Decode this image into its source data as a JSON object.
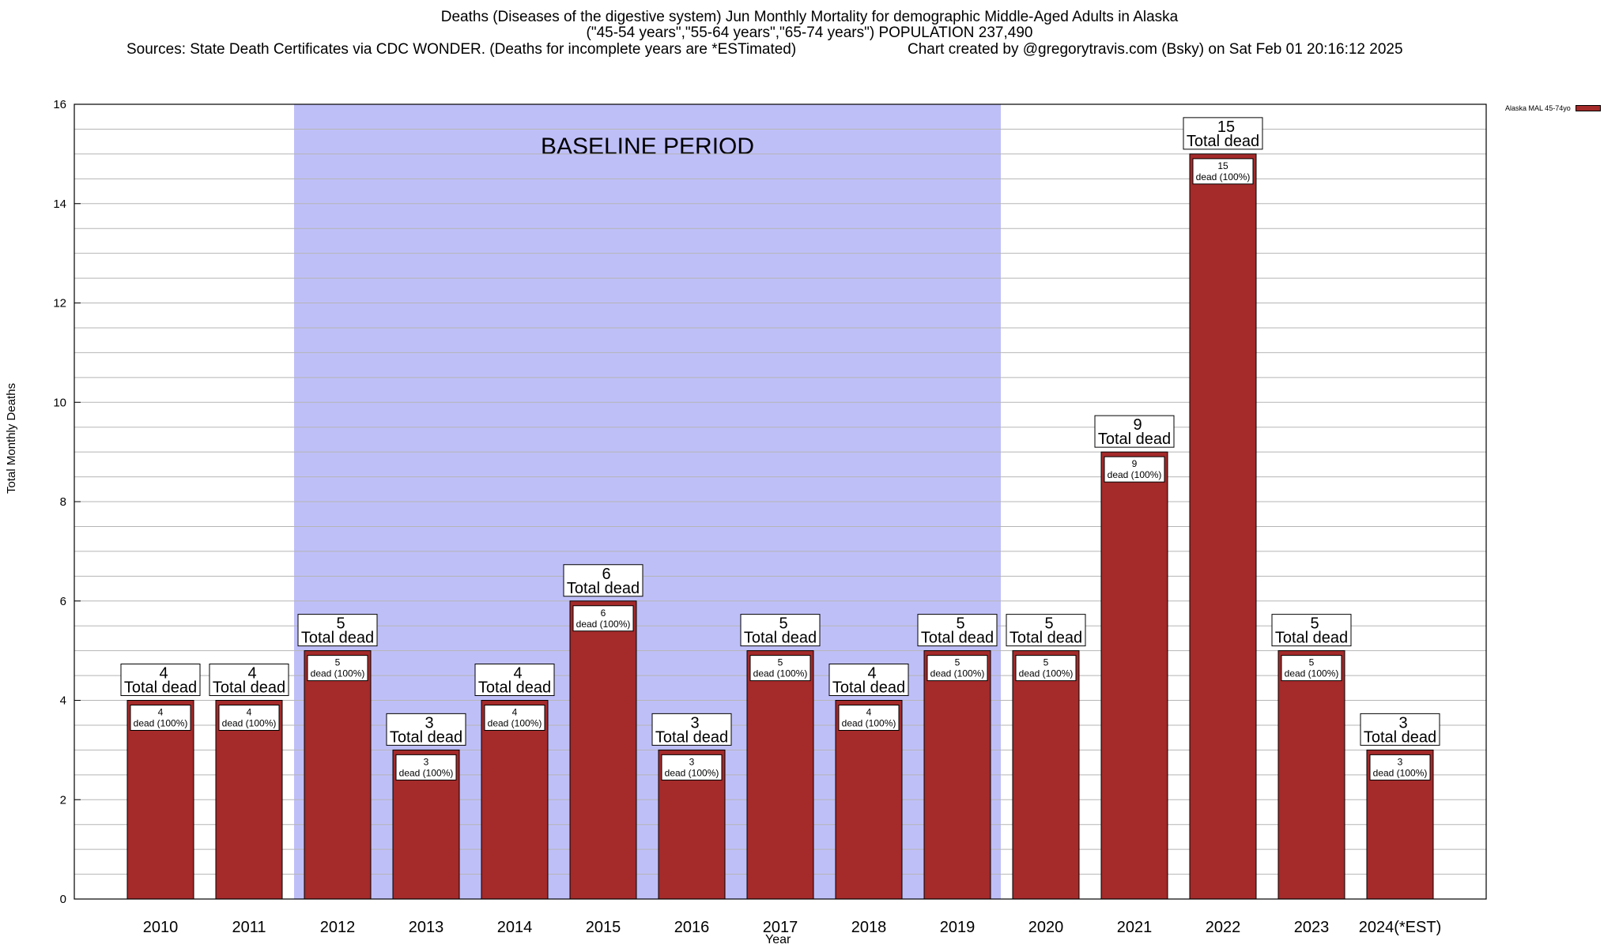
{
  "chart_data": {
    "type": "bar",
    "title_lines": [
      "Deaths (Diseases of the digestive system) Jun Monthly Mortality for demographic Middle-Aged Adults in Alaska",
      "(\"45-54 years\",\"55-64 years\",\"65-74 years\") POPULATION 237,490"
    ],
    "sources": "Sources: State Death Certificates via CDC WONDER. (Deaths for incomplete years are *ESTimated)",
    "credit": "Chart created by @gregorytravis.com (Bsky) on Sat Feb 01 20:16:12 2025",
    "xlabel": "Year",
    "ylabel": "Total Monthly Deaths",
    "ylim": [
      0,
      16
    ],
    "y_ticks": [
      0,
      2,
      4,
      6,
      8,
      10,
      12,
      14,
      16
    ],
    "categories": [
      "2010",
      "2011",
      "2012",
      "2013",
      "2014",
      "2015",
      "2016",
      "2017",
      "2018",
      "2019",
      "2020",
      "2021",
      "2022",
      "2023",
      "2024(*EST)"
    ],
    "series": [
      {
        "name": "Alaska MAL 45-74yo",
        "values": [
          4,
          4,
          5,
          3,
          4,
          6,
          3,
          5,
          4,
          5,
          5,
          9,
          15,
          5,
          3
        ],
        "color": "#a52a2a"
      }
    ],
    "top_label_suffix": "Total dead",
    "inner_label_suffix": "dead (100%)",
    "baseline": {
      "label": "BASELINE PERIOD",
      "from": "2012",
      "to": "2019",
      "color": "#bfbff8"
    },
    "grid": true,
    "legend_position": "top-right"
  }
}
